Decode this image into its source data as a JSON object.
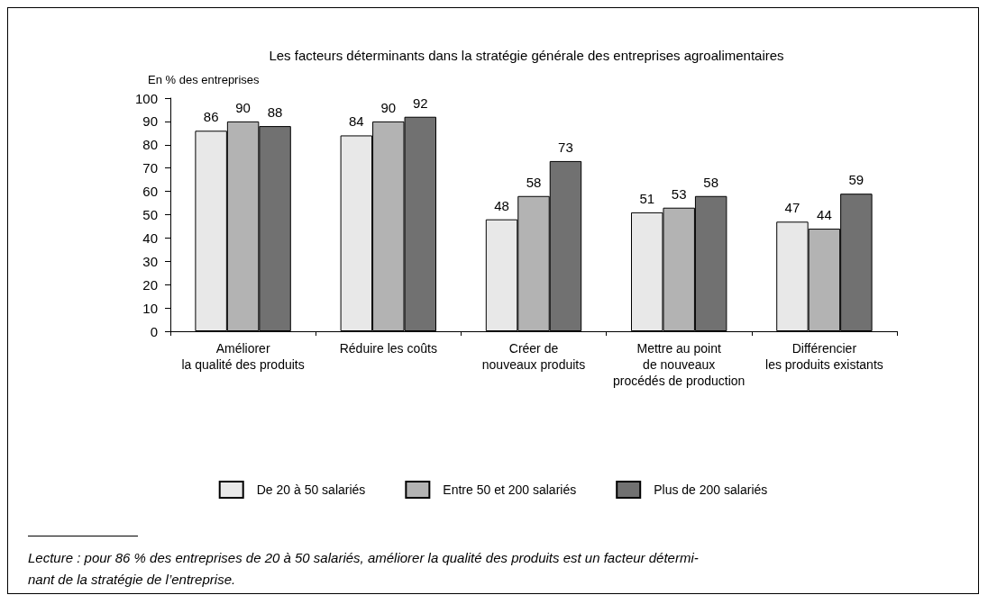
{
  "chart_data": {
    "type": "bar",
    "title": "Les facteurs déterminants dans la stratégie générale des entreprises agroalimentaires",
    "ylabel": "En % des entreprises",
    "categories": [
      "Améliorer\nla qualité des produits",
      "Réduire les coûts",
      "Créer de\nnouveaux produits",
      "Mettre au point\nde nouveaux\nprocédés de production",
      "Différencier\nles produits existants"
    ],
    "series": [
      {
        "name": "De 20 à 50 salariés",
        "color": "#e8e8e8",
        "values": [
          86,
          84,
          48,
          51,
          47
        ]
      },
      {
        "name": "Entre 50 et 200 salariés",
        "color": "#b3b3b3",
        "values": [
          90,
          90,
          58,
          53,
          44
        ]
      },
      {
        "name": "Plus de 200 salariés",
        "color": "#717171",
        "values": [
          88,
          92,
          73,
          58,
          59
        ]
      }
    ],
    "ylim": [
      0,
      100
    ],
    "yticks": [
      0,
      10,
      20,
      30,
      40,
      50,
      60,
      70,
      80,
      90,
      100
    ],
    "grid": false,
    "legend": "bottom",
    "data_labels": true,
    "annotations": [
      "Lecture : pour 86 % des entreprises de 20 à 50 salariés, améliorer la qualité des produits est un facteur détermi-\nnant de la stratégie de l’entreprise."
    ]
  }
}
